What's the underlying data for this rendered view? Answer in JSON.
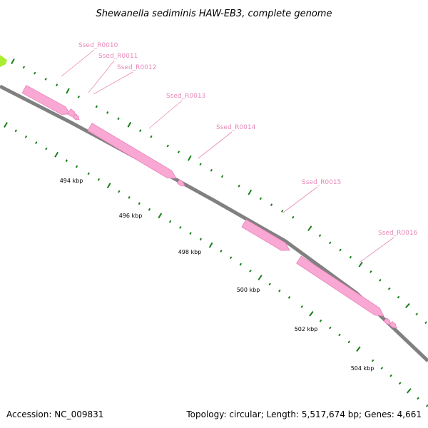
{
  "title": "Shewanella sediminis HAW-EB3, complete genome",
  "colors": {
    "gene": "#f9a8d4",
    "gene_stroke": "#e880b8",
    "gene_label": "#e889b9",
    "backbone": "#808080",
    "tick": "#1a7f1a",
    "adjacent_feature": "#aaee33"
  },
  "genes": [
    {
      "id": "Ssed_R0010",
      "label": "Ssed_R0010"
    },
    {
      "id": "Ssed_R0011",
      "label": "Ssed_R0011"
    },
    {
      "id": "Ssed_R0012",
      "label": "Ssed_R0012"
    },
    {
      "id": "Ssed_R0013",
      "label": "Ssed_R0013"
    },
    {
      "id": "Ssed_R0014",
      "label": "Ssed_R0014"
    },
    {
      "id": "Ssed_R0015",
      "label": "Ssed_R0015"
    },
    {
      "id": "Ssed_R0016",
      "label": "Ssed_R0016"
    }
  ],
  "scale_labels": [
    "494 kbp",
    "496 kbp",
    "498 kbp",
    "500 kbp",
    "502 kbp",
    "504 kbp"
  ],
  "footer": {
    "accession": "Accession: NC_009831",
    "stats": "Topology: circular; Length: 5,517,674 bp; Genes: 4,661"
  }
}
